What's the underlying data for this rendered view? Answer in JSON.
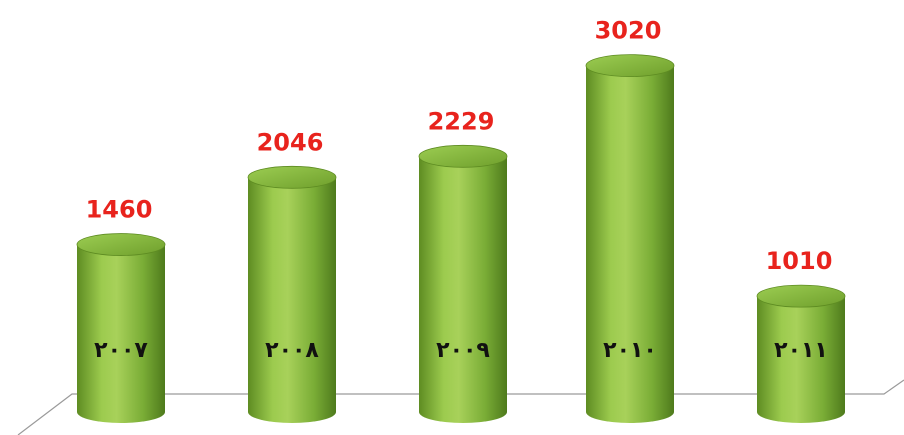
{
  "chart_data": {
    "type": "bar",
    "style": "3d-cylinder",
    "categories": [
      "٢٠٠٧",
      "٢٠٠٨",
      "٢٠٠٩",
      "٢٠١٠",
      "٢٠١١"
    ],
    "values": [
      1460,
      2046,
      2229,
      3020,
      1010
    ],
    "value_labels": [
      "1460",
      "2046",
      "2229",
      "3020",
      "1010"
    ],
    "ylim": [
      0,
      3200
    ],
    "grid": false,
    "legend": "none",
    "colors": {
      "bar_light": "#a8d15a",
      "bar_mid": "#7fb23a",
      "bar_dark": "#4e7a1c",
      "bar_top": "#8ec444",
      "value_text": "#e8231d",
      "floor_line": "#9a9a9a"
    }
  }
}
